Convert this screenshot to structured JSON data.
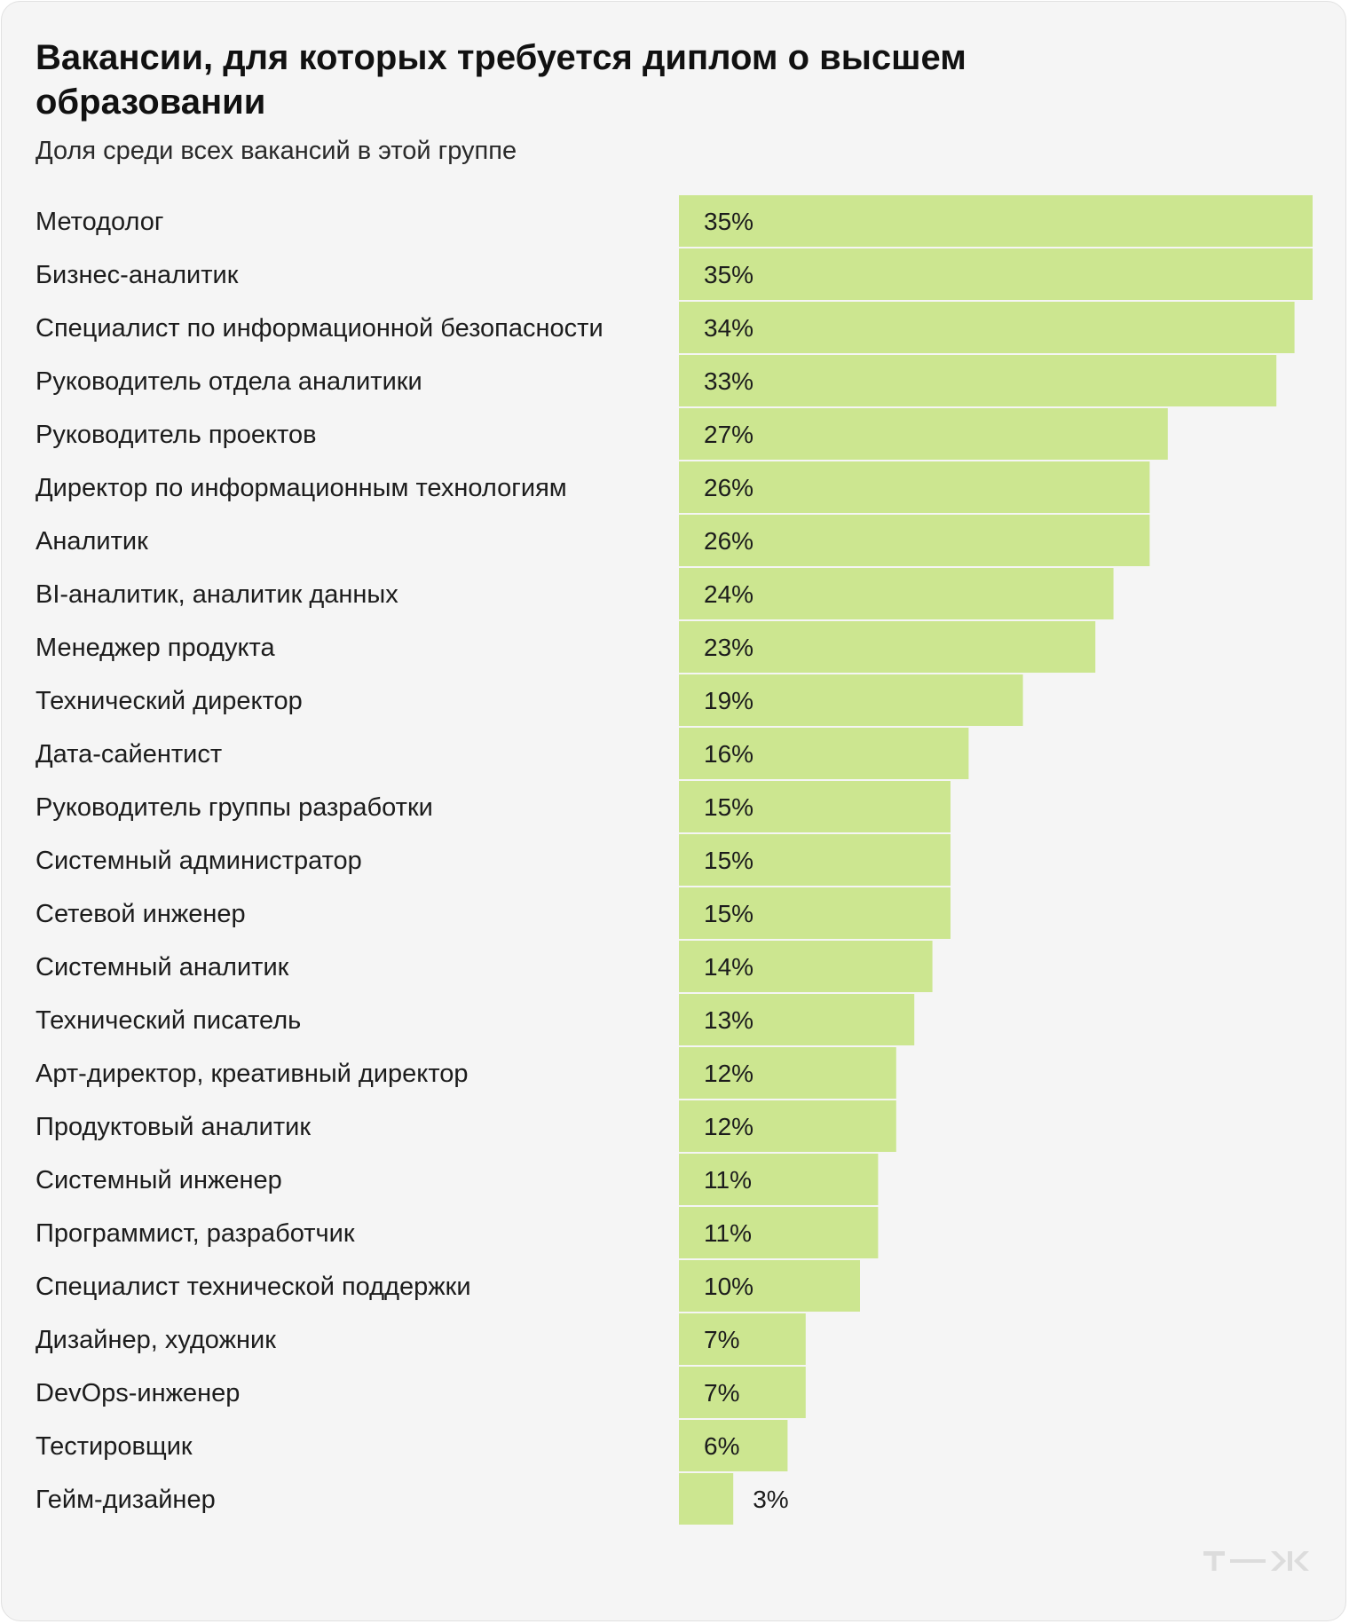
{
  "chart_data": {
    "type": "bar",
    "orientation": "horizontal",
    "title": "Вакансии, для которых требуется диплом о высшем образовании",
    "subtitle": "Доля среди всех вакансий в этой группе",
    "categories": [
      "Методолог",
      "Бизнес-аналитик",
      "Специалист по информационной безопасности",
      "Руководитель отдела аналитики",
      "Руководитель проектов",
      "Директор по информационным технологиям",
      "Аналитик",
      "BI-аналитик, аналитик данных",
      "Менеджер продукта",
      "Технический директор",
      "Дата-сайентист",
      "Руководитель группы разработки",
      "Системный администратор",
      "Сетевой инженер",
      "Системный аналитик",
      "Технический писатель",
      "Арт-директор, креативный директор",
      "Продуктовый аналитик",
      "Системный инженер",
      "Программист, разработчик",
      "Специалист технической поддержки",
      "Дизайнер, художник",
      "DevOps-инженер",
      "Тестировщик",
      "Гейм-дизайнер"
    ],
    "values": [
      35,
      35,
      34,
      33,
      27,
      26,
      26,
      24,
      23,
      19,
      16,
      15,
      15,
      15,
      14,
      13,
      12,
      12,
      11,
      11,
      10,
      7,
      7,
      6,
      3
    ],
    "value_labels": [
      "35%",
      "35%",
      "34%",
      "33%",
      "27%",
      "26%",
      "26%",
      "24%",
      "23%",
      "19%",
      "16%",
      "15%",
      "15%",
      "15%",
      "14%",
      "13%",
      "12%",
      "12%",
      "11%",
      "11%",
      "10%",
      "7%",
      "7%",
      "6%",
      "3%"
    ],
    "xlim": [
      0,
      35
    ],
    "unit": "%",
    "grid": false,
    "legend": "none",
    "colors": {
      "bar": "#cce690",
      "background": "#f5f5f5",
      "text": "#1c1c1c"
    }
  },
  "logo": {
    "text": "т—ж",
    "color": "#dcdcdc"
  }
}
